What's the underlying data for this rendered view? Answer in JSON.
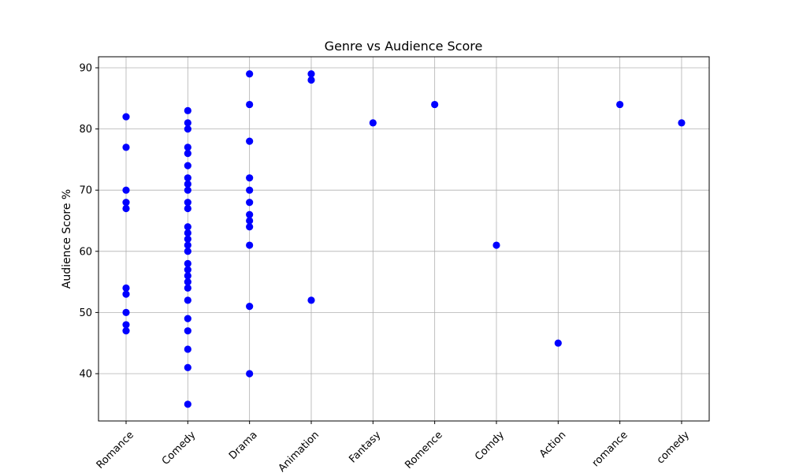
{
  "chart_data": {
    "type": "scatter",
    "title": "Genre vs Audience Score",
    "xlabel": "",
    "ylabel": "Audience Score %",
    "categories": [
      "Romance",
      "Comedy",
      "Drama",
      "Animation",
      "Fantasy",
      "Romence",
      "Comdy",
      "Action",
      "romance",
      "comedy"
    ],
    "ylim": [
      32,
      91
    ],
    "yticks": [
      40,
      50,
      60,
      70,
      80,
      90
    ],
    "grid": true,
    "marker_color": "#0000ff",
    "points": [
      {
        "x": "Romance",
        "y": 82
      },
      {
        "x": "Romance",
        "y": 77
      },
      {
        "x": "Romance",
        "y": 70
      },
      {
        "x": "Romance",
        "y": 68
      },
      {
        "x": "Romance",
        "y": 67
      },
      {
        "x": "Romance",
        "y": 54
      },
      {
        "x": "Romance",
        "y": 53
      },
      {
        "x": "Romance",
        "y": 50
      },
      {
        "x": "Romance",
        "y": 48
      },
      {
        "x": "Romance",
        "y": 47
      },
      {
        "x": "Comedy",
        "y": 83
      },
      {
        "x": "Comedy",
        "y": 81
      },
      {
        "x": "Comedy",
        "y": 80
      },
      {
        "x": "Comedy",
        "y": 77
      },
      {
        "x": "Comedy",
        "y": 76
      },
      {
        "x": "Comedy",
        "y": 74
      },
      {
        "x": "Comedy",
        "y": 72
      },
      {
        "x": "Comedy",
        "y": 71
      },
      {
        "x": "Comedy",
        "y": 70
      },
      {
        "x": "Comedy",
        "y": 68
      },
      {
        "x": "Comedy",
        "y": 67
      },
      {
        "x": "Comedy",
        "y": 64
      },
      {
        "x": "Comedy",
        "y": 63
      },
      {
        "x": "Comedy",
        "y": 62
      },
      {
        "x": "Comedy",
        "y": 61
      },
      {
        "x": "Comedy",
        "y": 60
      },
      {
        "x": "Comedy",
        "y": 58
      },
      {
        "x": "Comedy",
        "y": 57
      },
      {
        "x": "Comedy",
        "y": 56
      },
      {
        "x": "Comedy",
        "y": 55
      },
      {
        "x": "Comedy",
        "y": 54
      },
      {
        "x": "Comedy",
        "y": 52
      },
      {
        "x": "Comedy",
        "y": 49
      },
      {
        "x": "Comedy",
        "y": 47
      },
      {
        "x": "Comedy",
        "y": 44
      },
      {
        "x": "Comedy",
        "y": 41
      },
      {
        "x": "Comedy",
        "y": 35
      },
      {
        "x": "Drama",
        "y": 89
      },
      {
        "x": "Drama",
        "y": 84
      },
      {
        "x": "Drama",
        "y": 78
      },
      {
        "x": "Drama",
        "y": 72
      },
      {
        "x": "Drama",
        "y": 70
      },
      {
        "x": "Drama",
        "y": 68
      },
      {
        "x": "Drama",
        "y": 66
      },
      {
        "x": "Drama",
        "y": 65
      },
      {
        "x": "Drama",
        "y": 64
      },
      {
        "x": "Drama",
        "y": 61
      },
      {
        "x": "Drama",
        "y": 51
      },
      {
        "x": "Drama",
        "y": 40
      },
      {
        "x": "Animation",
        "y": 89
      },
      {
        "x": "Animation",
        "y": 88
      },
      {
        "x": "Animation",
        "y": 52
      },
      {
        "x": "Fantasy",
        "y": 81
      },
      {
        "x": "Romence",
        "y": 84
      },
      {
        "x": "Comdy",
        "y": 61
      },
      {
        "x": "Action",
        "y": 45
      },
      {
        "x": "romance",
        "y": 84
      },
      {
        "x": "comedy",
        "y": 81
      }
    ]
  }
}
